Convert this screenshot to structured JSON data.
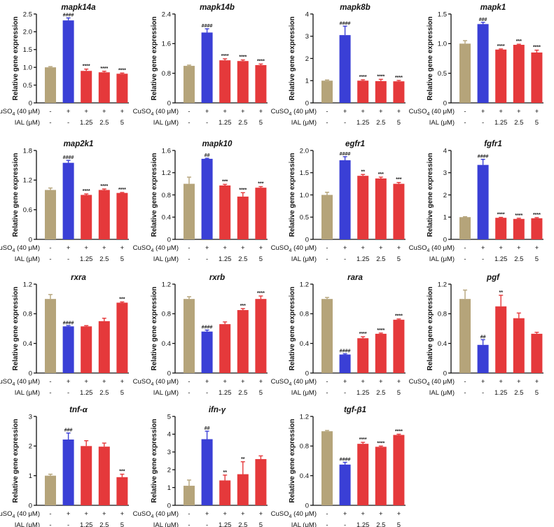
{
  "colors": {
    "control": "#b5a47a",
    "model": "#3a3fd6",
    "treated": "#e5393b"
  },
  "row_labels": {
    "cuso4": "CuSO",
    "cuso4_sub": "4",
    "cuso4_conc": " (40 μM)",
    "ial": "IAL (μM)"
  },
  "conditions": {
    "cuso4": [
      "-",
      "+",
      "+",
      "+",
      "+"
    ],
    "ial": [
      "-",
      "-",
      "1.25",
      "2.5",
      "5"
    ]
  },
  "chart_data": [
    {
      "type": "bar",
      "title": "mapk14a",
      "ylabel": "Relative gene expression",
      "ylim": [
        0,
        2.5
      ],
      "yticks": [
        "0",
        "0.5",
        "1.0",
        "1.5",
        "2.0",
        "2.5"
      ],
      "values": [
        1.0,
        2.32,
        0.9,
        0.86,
        0.82
      ],
      "errors": [
        0.02,
        0.07,
        0.05,
        0.03,
        0.02
      ],
      "annotations": [
        "",
        "####",
        "****",
        "****",
        "****"
      ]
    },
    {
      "type": "bar",
      "title": "mapk14b",
      "ylabel": "Relative gene expression",
      "ylim": [
        0,
        2.4
      ],
      "yticks": [
        "0",
        "0.8",
        "1.6",
        "2.4"
      ],
      "values": [
        1.0,
        1.9,
        1.15,
        1.13,
        1.02
      ],
      "errors": [
        0.02,
        0.1,
        0.04,
        0.03,
        0.03
      ],
      "annotations": [
        "",
        "####",
        "****",
        "****",
        "****"
      ]
    },
    {
      "type": "bar",
      "title": "mapk8b",
      "ylabel": "Relative gene expression",
      "ylim": [
        0,
        4
      ],
      "yticks": [
        "0",
        "1",
        "2",
        "3",
        "4"
      ],
      "values": [
        1.0,
        3.05,
        1.0,
        0.98,
        0.97
      ],
      "errors": [
        0.03,
        0.4,
        0.04,
        0.08,
        0.04
      ],
      "annotations": [
        "",
        "####",
        "****",
        "****",
        "****"
      ]
    },
    {
      "type": "bar",
      "title": "mapk1",
      "ylabel": "Relative gene expression",
      "ylim": [
        0,
        1.5
      ],
      "yticks": [
        "0",
        "0.5",
        "1.0",
        "1.5"
      ],
      "values": [
        1.0,
        1.33,
        0.9,
        0.98,
        0.85
      ],
      "errors": [
        0.05,
        0.03,
        0.01,
        0.01,
        0.04
      ],
      "annotations": [
        "",
        "###",
        "****",
        "***",
        "****"
      ]
    },
    {
      "type": "bar",
      "title": "map2k1",
      "ylabel": "Relative gene expression",
      "ylim": [
        0,
        1.8
      ],
      "yticks": [
        "0",
        "0.6",
        "1.2",
        "1.8"
      ],
      "values": [
        1.0,
        1.55,
        0.9,
        1.0,
        0.94
      ],
      "errors": [
        0.04,
        0.05,
        0.02,
        0.02,
        0.01
      ],
      "annotations": [
        "",
        "####",
        "****",
        "****",
        "****"
      ]
    },
    {
      "type": "bar",
      "title": "mapk10",
      "ylabel": "Relative gene expression",
      "ylim": [
        0,
        1.6
      ],
      "yticks": [
        "0",
        "0.4",
        "0.8",
        "1.2",
        "1.6"
      ],
      "values": [
        1.0,
        1.45,
        0.97,
        0.77,
        0.93
      ],
      "errors": [
        0.12,
        0.01,
        0.02,
        0.07,
        0.02
      ],
      "annotations": [
        "",
        "##",
        "***",
        "****",
        "***"
      ]
    },
    {
      "type": "bar",
      "title": "egfr1",
      "ylabel": "Relative gene expression",
      "ylim": [
        0,
        2.0
      ],
      "yticks": [
        "0",
        "0.5",
        "1.0",
        "1.5",
        "2.0"
      ],
      "values": [
        1.0,
        1.78,
        1.43,
        1.37,
        1.25
      ],
      "errors": [
        0.06,
        0.08,
        0.03,
        0.03,
        0.03
      ],
      "annotations": [
        "",
        "####",
        "**",
        "***",
        "***"
      ]
    },
    {
      "type": "bar",
      "title": "fgfr1",
      "ylabel": "Relative gene expression",
      "ylim": [
        0,
        4
      ],
      "yticks": [
        "0",
        "1",
        "2",
        "3",
        "4"
      ],
      "values": [
        1.0,
        3.35,
        0.97,
        0.92,
        0.95
      ],
      "errors": [
        0.02,
        0.25,
        0.02,
        0.03,
        0.03
      ],
      "annotations": [
        "",
        "####",
        "****",
        "****",
        "****"
      ]
    },
    {
      "type": "bar",
      "title": "rxra",
      "ylabel": "Relative gene expression",
      "ylim": [
        0,
        1.2
      ],
      "yticks": [
        "0",
        "0.4",
        "0.8",
        "1.2"
      ],
      "values": [
        1.0,
        0.63,
        0.63,
        0.7,
        0.95
      ],
      "errors": [
        0.06,
        0.01,
        0.01,
        0.04,
        0.01
      ],
      "annotations": [
        "",
        "####",
        "",
        "",
        "***"
      ]
    },
    {
      "type": "bar",
      "title": "rxrb",
      "ylabel": "Relative gene expression",
      "ylim": [
        0,
        1.2
      ],
      "yticks": [
        "0",
        "0.4",
        "0.8",
        "1.2"
      ],
      "values": [
        1.0,
        0.56,
        0.66,
        0.85,
        1.0
      ],
      "errors": [
        0.03,
        0.02,
        0.03,
        0.02,
        0.04
      ],
      "annotations": [
        "",
        "####",
        "",
        "***",
        "****"
      ]
    },
    {
      "type": "bar",
      "title": "rara",
      "ylabel": "Relative gene expression",
      "ylim": [
        0,
        1.2
      ],
      "yticks": [
        "0",
        "0.4",
        "0.8",
        "1.2"
      ],
      "values": [
        1.0,
        0.25,
        0.47,
        0.53,
        0.72
      ],
      "errors": [
        0.02,
        0.01,
        0.02,
        0.01,
        0.01
      ],
      "annotations": [
        "",
        "####",
        "****",
        "****",
        "****"
      ]
    },
    {
      "type": "bar",
      "title": "pgf",
      "ylabel": "Relative gene expression",
      "ylim": [
        0,
        1.2
      ],
      "yticks": [
        "0",
        "0.4",
        "0.8",
        "1.2"
      ],
      "values": [
        1.0,
        0.38,
        0.9,
        0.74,
        0.53
      ],
      "errors": [
        0.12,
        0.07,
        0.15,
        0.07,
        0.02
      ],
      "annotations": [
        "",
        "##",
        "**",
        "",
        ""
      ]
    },
    {
      "type": "bar",
      "title": "tnf-α",
      "ylabel": "Relative gene expression",
      "ylim": [
        0,
        3
      ],
      "yticks": [
        "0",
        "1",
        "2",
        "3"
      ],
      "values": [
        1.0,
        2.22,
        2.0,
        1.98,
        0.95
      ],
      "errors": [
        0.05,
        0.22,
        0.18,
        0.12,
        0.1
      ],
      "annotations": [
        "",
        "###",
        "",
        "",
        "***"
      ]
    },
    {
      "type": "bar",
      "title": "ifn-γ",
      "ylabel": "Relative gene expression",
      "ylim": [
        0,
        5
      ],
      "yticks": [
        "0",
        "1",
        "2",
        "3",
        "4",
        "5"
      ],
      "values": [
        1.1,
        3.72,
        1.4,
        1.75,
        2.6
      ],
      "errors": [
        0.32,
        0.45,
        0.3,
        0.7,
        0.18
      ],
      "annotations": [
        "",
        "##",
        "**",
        "**",
        ""
      ]
    },
    {
      "type": "bar",
      "title": "tgf-β1",
      "ylabel": "Relative gene expression",
      "ylim": [
        0,
        1.2
      ],
      "yticks": [
        "0",
        "0.4",
        "0.8",
        "1.2"
      ],
      "values": [
        1.0,
        0.55,
        0.83,
        0.79,
        0.95
      ],
      "errors": [
        0.01,
        0.03,
        0.02,
        0.01,
        0.01
      ],
      "annotations": [
        "",
        "####",
        "****",
        "****",
        "****"
      ]
    }
  ]
}
